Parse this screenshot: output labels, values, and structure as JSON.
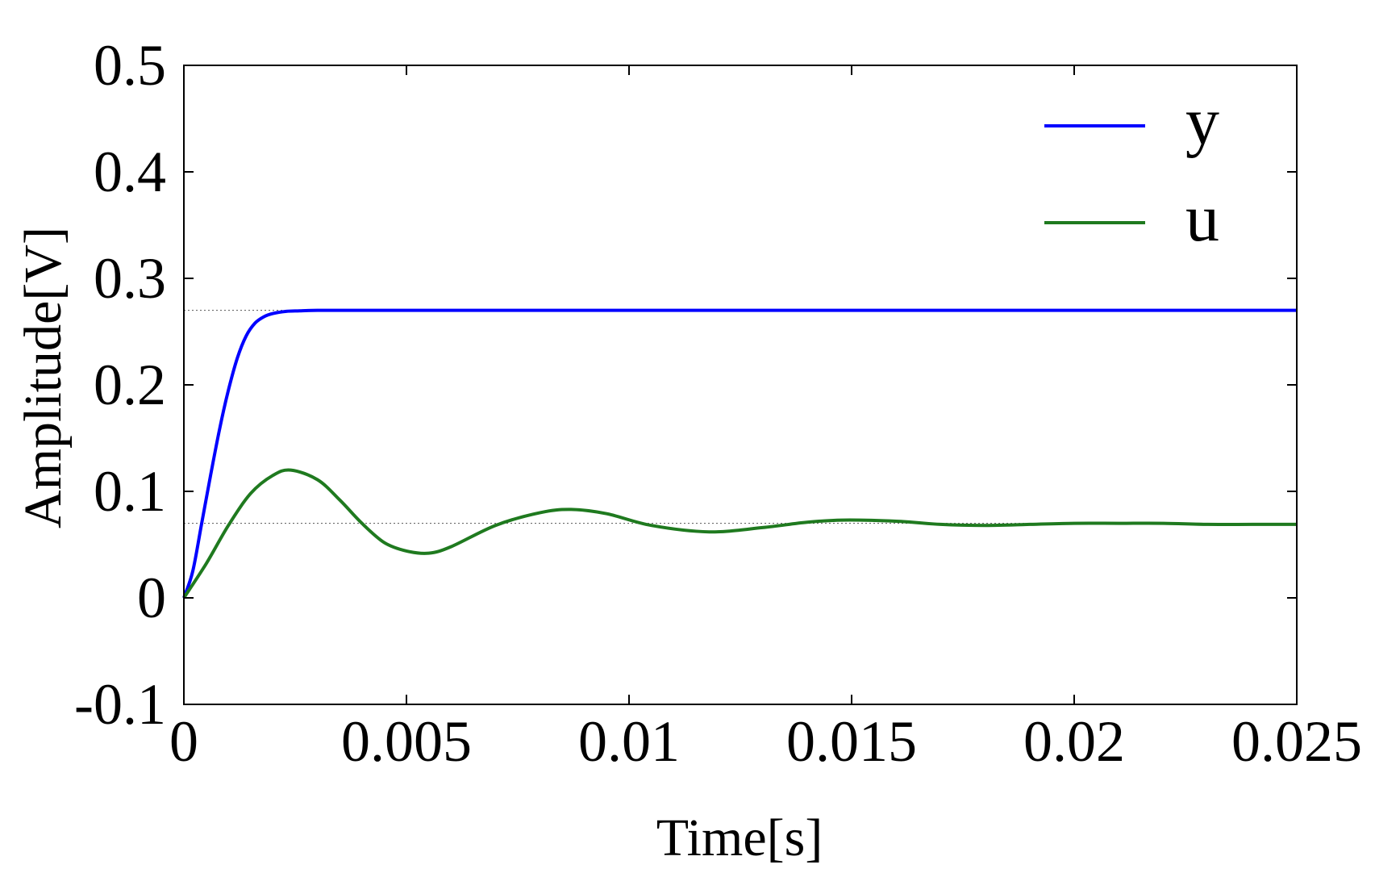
{
  "chart_data": {
    "type": "line",
    "title": "",
    "xlabel": "Time[s]",
    "ylabel": "Amplitude[V]",
    "xlim": [
      0,
      0.025
    ],
    "ylim": [
      -0.1,
      0.5
    ],
    "xticks": [
      0,
      0.005,
      0.01,
      0.015,
      0.02,
      0.025
    ],
    "xtick_labels": [
      "0",
      "0.005",
      "0.01",
      "0.015",
      "0.02",
      "0.025"
    ],
    "yticks": [
      -0.1,
      0,
      0.1,
      0.2,
      0.3,
      0.4,
      0.5
    ],
    "ytick_labels": [
      "-0.1",
      "0",
      "0.1",
      "0.2",
      "0.3",
      "0.4",
      "0.5"
    ],
    "grid": false,
    "legend_position": "top-right",
    "reference_lines": [
      0.27,
      0.07
    ],
    "series": [
      {
        "name": "y",
        "color": "#0000ff",
        "x": [
          0,
          0.0002,
          0.0004,
          0.0006,
          0.0008,
          0.001,
          0.0012,
          0.0014,
          0.0016,
          0.0018,
          0.002,
          0.0023,
          0.0026,
          0.003,
          0.004,
          0.006,
          0.01,
          0.015,
          0.02,
          0.025
        ],
        "y": [
          0,
          0.025,
          0.07,
          0.115,
          0.158,
          0.195,
          0.225,
          0.246,
          0.258,
          0.264,
          0.267,
          0.269,
          0.2695,
          0.27,
          0.27,
          0.27,
          0.27,
          0.27,
          0.27,
          0.27
        ]
      },
      {
        "name": "u",
        "color": "#1f7a1f",
        "x": [
          0,
          0.0005,
          0.001,
          0.0015,
          0.002,
          0.0024,
          0.003,
          0.0035,
          0.004,
          0.0045,
          0.005,
          0.0055,
          0.006,
          0.007,
          0.008,
          0.0087,
          0.0095,
          0.0105,
          0.0118,
          0.013,
          0.014,
          0.0148,
          0.016,
          0.017,
          0.018,
          0.019,
          0.02,
          0.021,
          0.022,
          0.023,
          0.024,
          0.025
        ],
        "y": [
          0,
          0.032,
          0.068,
          0.098,
          0.115,
          0.12,
          0.111,
          0.092,
          0.07,
          0.052,
          0.044,
          0.042,
          0.048,
          0.068,
          0.08,
          0.083,
          0.079,
          0.068,
          0.062,
          0.066,
          0.071,
          0.073,
          0.072,
          0.069,
          0.068,
          0.069,
          0.07,
          0.07,
          0.07,
          0.069,
          0.069,
          0.069
        ]
      }
    ]
  }
}
